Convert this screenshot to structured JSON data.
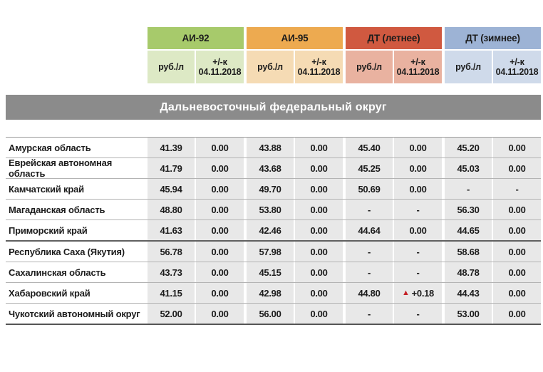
{
  "district_title": "Дальневосточный федеральный округ",
  "subheader": {
    "price_label": "руб./л",
    "change_label_line1": "+/-к",
    "change_label_line2": "04.11.2018"
  },
  "fuel_columns": [
    {
      "label": "АИ-92",
      "band_color": "#a7ca6b",
      "light_color": "#dde9c5"
    },
    {
      "label": "АИ-95",
      "band_color": "#edaa50",
      "light_color": "#f5dbb4"
    },
    {
      "label": "ДТ (летнее)",
      "band_color": "#d05940",
      "light_color": "#e9b2a0"
    },
    {
      "label": "ДТ (зимнее)",
      "band_color": "#9db3d5",
      "light_color": "#cfdaea"
    }
  ],
  "colors": {
    "title_bar_bg": "#8b8b8b",
    "title_bar_text": "#ffffff",
    "data_cell_bg": "#e8e8e8",
    "row_separator": "#b3b3b3",
    "heavy_separator": "#606060",
    "up_marker": "#c42127",
    "text": "#1c1c1c"
  },
  "rows": [
    {
      "region": "Амурская область",
      "values": [
        "41.39",
        "0.00",
        "43.88",
        "0.00",
        "45.40",
        "0.00",
        "45.20",
        "0.00"
      ]
    },
    {
      "region": "Еврейская автономная область",
      "values": [
        "41.79",
        "0.00",
        "43.68",
        "0.00",
        "45.25",
        "0.00",
        "45.03",
        "0.00"
      ]
    },
    {
      "region": "Камчатский край",
      "values": [
        "45.94",
        "0.00",
        "49.70",
        "0.00",
        "50.69",
        "0.00",
        "-",
        "-"
      ]
    },
    {
      "region": "Магаданская область",
      "values": [
        "48.80",
        "0.00",
        "53.80",
        "0.00",
        "-",
        "-",
        "56.30",
        "0.00"
      ]
    },
    {
      "region": "Приморский край",
      "values": [
        "41.63",
        "0.00",
        "42.46",
        "0.00",
        "44.64",
        "0.00",
        "44.65",
        "0.00"
      ]
    },
    {
      "region": "Республика Саха (Якутия)",
      "values": [
        "56.78",
        "0.00",
        "57.98",
        "0.00",
        "-",
        "-",
        "58.68",
        "0.00"
      ]
    },
    {
      "region": "Сахалинская область",
      "values": [
        "43.73",
        "0.00",
        "45.15",
        "0.00",
        "-",
        "-",
        "48.78",
        "0.00"
      ]
    },
    {
      "region": "Хабаровский край",
      "values": [
        "41.15",
        "0.00",
        "42.98",
        "0.00",
        "44.80",
        "▲+0.18",
        "44.43",
        "0.00"
      ]
    },
    {
      "region": "Чукотский автономный округ",
      "values": [
        "52.00",
        "0.00",
        "56.00",
        "0.00",
        "-",
        "-",
        "53.00",
        "0.00"
      ]
    }
  ],
  "heavy_separator_after_row_index": 4,
  "chart_data": {
    "type": "table",
    "title": "Дальневосточный федеральный округ",
    "column_groups": [
      "АИ-92",
      "АИ-95",
      "ДТ (летнее)",
      "ДТ (зимнее)"
    ],
    "sub_columns": [
      "руб./л",
      "+/-к 04.11.2018"
    ],
    "rows": [
      {
        "region": "Амурская область",
        "ai92": 41.39,
        "ai92_chg": 0.0,
        "ai95": 43.88,
        "ai95_chg": 0.0,
        "dt_summer": 45.4,
        "dt_summer_chg": 0.0,
        "dt_winter": 45.2,
        "dt_winter_chg": 0.0
      },
      {
        "region": "Еврейская автономная область",
        "ai92": 41.79,
        "ai92_chg": 0.0,
        "ai95": 43.68,
        "ai95_chg": 0.0,
        "dt_summer": 45.25,
        "dt_summer_chg": 0.0,
        "dt_winter": 45.03,
        "dt_winter_chg": 0.0
      },
      {
        "region": "Камчатский край",
        "ai92": 45.94,
        "ai92_chg": 0.0,
        "ai95": 49.7,
        "ai95_chg": 0.0,
        "dt_summer": 50.69,
        "dt_summer_chg": 0.0,
        "dt_winter": null,
        "dt_winter_chg": null
      },
      {
        "region": "Магаданская область",
        "ai92": 48.8,
        "ai92_chg": 0.0,
        "ai95": 53.8,
        "ai95_chg": 0.0,
        "dt_summer": null,
        "dt_summer_chg": null,
        "dt_winter": 56.3,
        "dt_winter_chg": 0.0
      },
      {
        "region": "Приморский край",
        "ai92": 41.63,
        "ai92_chg": 0.0,
        "ai95": 42.46,
        "ai95_chg": 0.0,
        "dt_summer": 44.64,
        "dt_summer_chg": 0.0,
        "dt_winter": 44.65,
        "dt_winter_chg": 0.0
      },
      {
        "region": "Республика Саха (Якутия)",
        "ai92": 56.78,
        "ai92_chg": 0.0,
        "ai95": 57.98,
        "ai95_chg": 0.0,
        "dt_summer": null,
        "dt_summer_chg": null,
        "dt_winter": 58.68,
        "dt_winter_chg": 0.0
      },
      {
        "region": "Сахалинская область",
        "ai92": 43.73,
        "ai92_chg": 0.0,
        "ai95": 45.15,
        "ai95_chg": 0.0,
        "dt_summer": null,
        "dt_summer_chg": null,
        "dt_winter": 48.78,
        "dt_winter_chg": 0.0
      },
      {
        "region": "Хабаровский край",
        "ai92": 41.15,
        "ai92_chg": 0.0,
        "ai95": 42.98,
        "ai95_chg": 0.0,
        "dt_summer": 44.8,
        "dt_summer_chg": 0.18,
        "dt_winter": 44.43,
        "dt_winter_chg": 0.0
      },
      {
        "region": "Чукотский автономный округ",
        "ai92": 52.0,
        "ai92_chg": 0.0,
        "ai95": 56.0,
        "ai95_chg": 0.0,
        "dt_summer": null,
        "dt_summer_chg": null,
        "dt_winter": 53.0,
        "dt_winter_chg": 0.0
      }
    ]
  }
}
